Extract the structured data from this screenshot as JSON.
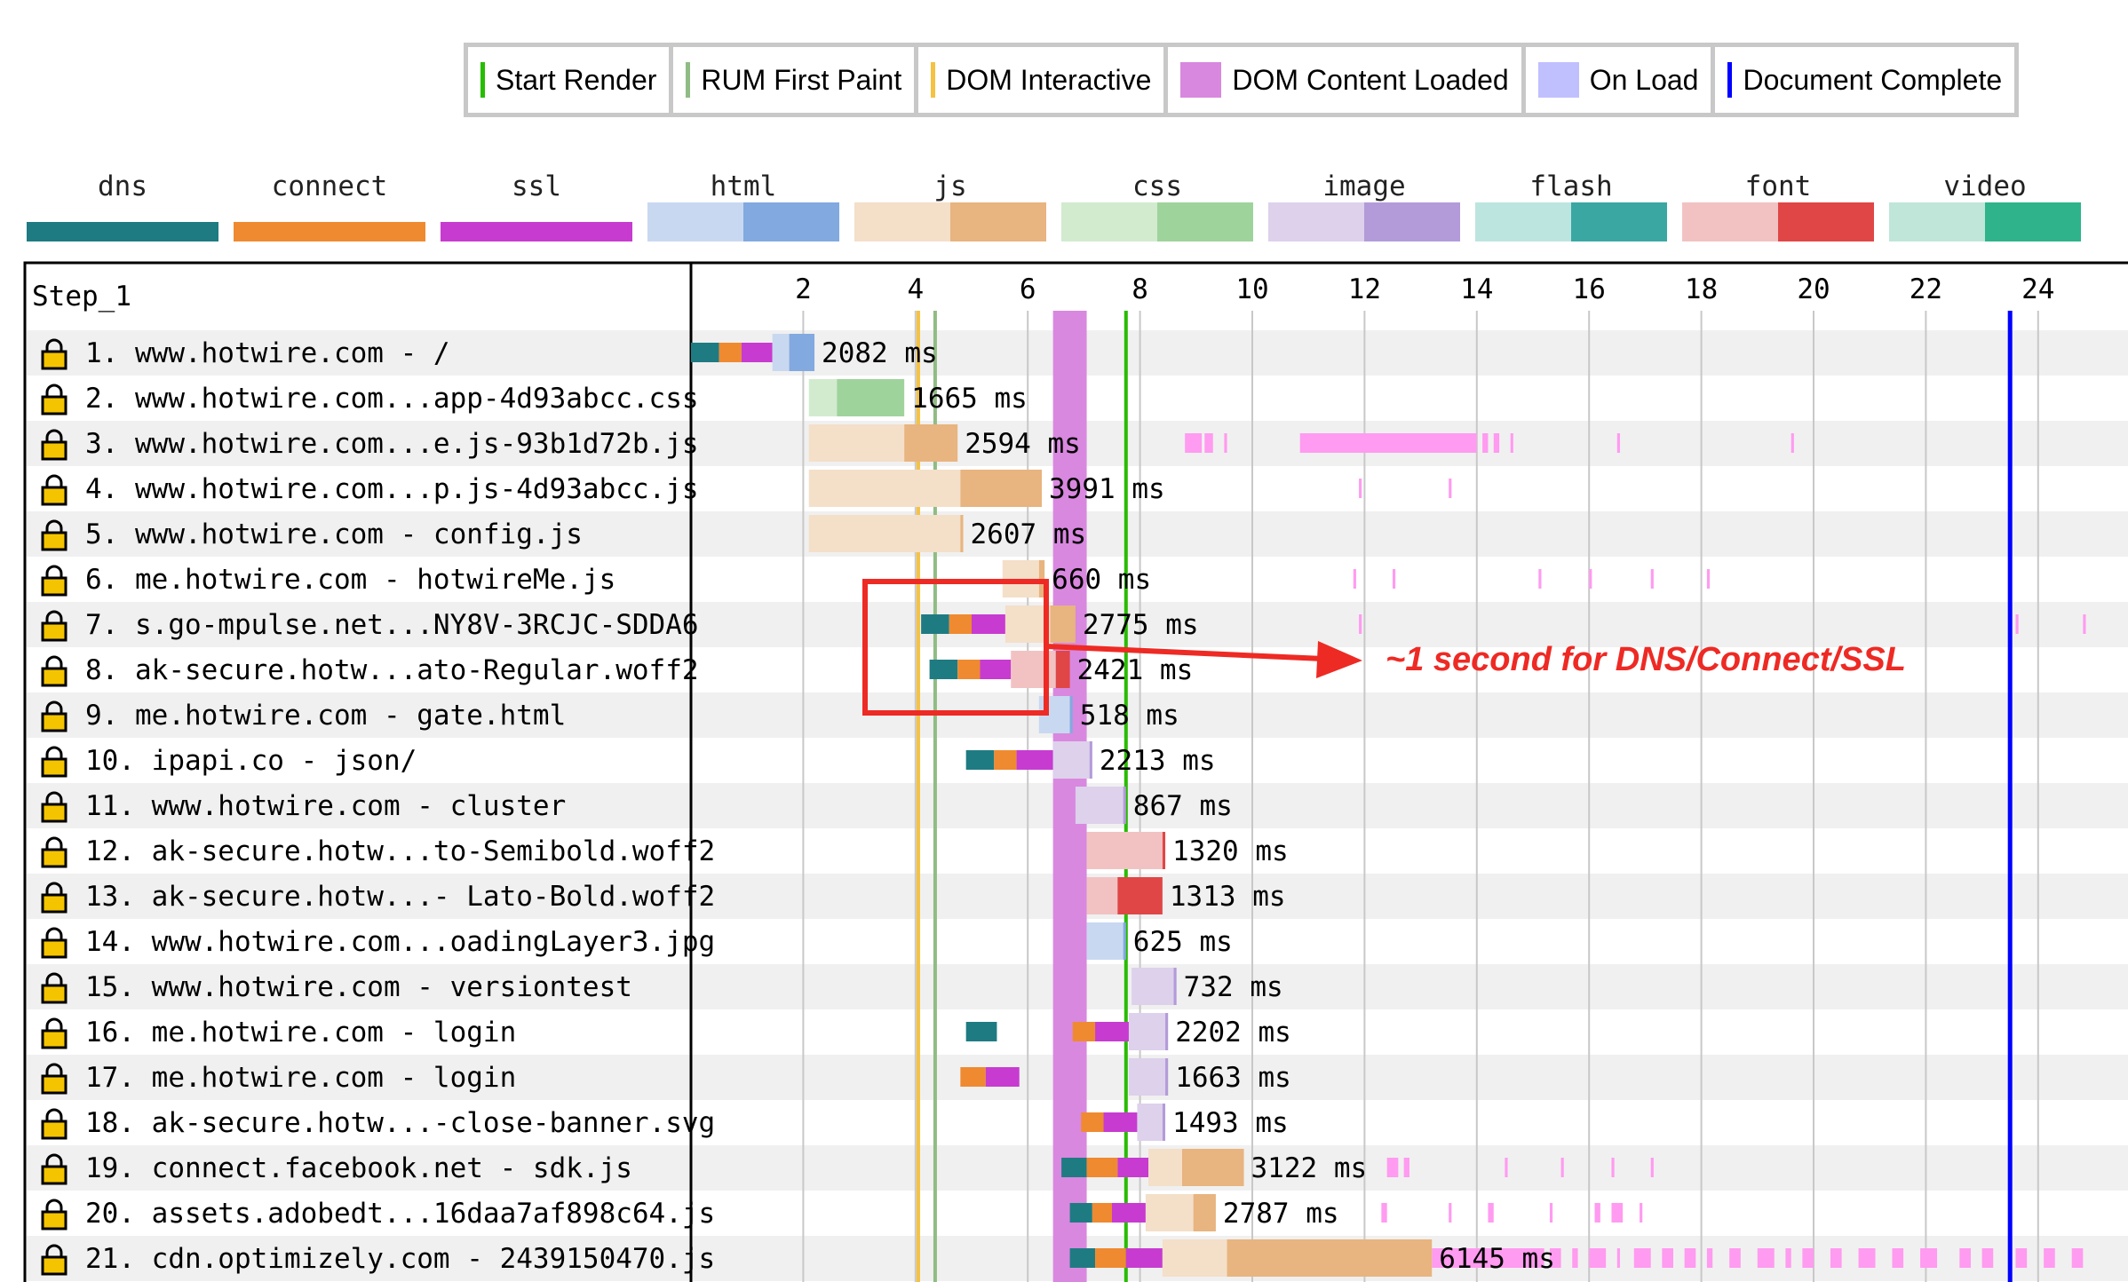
{
  "legend": [
    {
      "label": "Start Render",
      "color": "#28bc00",
      "kind": "line"
    },
    {
      "label": "RUM First Paint",
      "color": "#8fbc83",
      "kind": "line"
    },
    {
      "label": "DOM Interactive",
      "color": "#f5c242",
      "kind": "line"
    },
    {
      "label": "DOM Content Loaded",
      "color": "#d888df",
      "kind": "box"
    },
    {
      "label": "On Load",
      "color": "#c0c0ff",
      "kind": "box"
    },
    {
      "label": "Document Complete",
      "color": "#0000ff",
      "kind": "line"
    }
  ],
  "request_types": [
    {
      "label": "dns",
      "c1": "#1f7b82",
      "c2": "#1f7b82"
    },
    {
      "label": "connect",
      "c1": "#ef8a30",
      "c2": "#ef8a30"
    },
    {
      "label": "ssl",
      "c1": "#c73bd0",
      "c2": "#c73bd0"
    },
    {
      "label": "html",
      "c1": "#c9d8f1",
      "c2": "#82a9e0"
    },
    {
      "label": "js",
      "c1": "#f4dfc9",
      "c2": "#e8b47f"
    },
    {
      "label": "css",
      "c1": "#d2ebcf",
      "c2": "#9fd39c"
    },
    {
      "label": "image",
      "c1": "#ddd1ec",
      "c2": "#b39bd9"
    },
    {
      "label": "flash",
      "c1": "#bce5e0",
      "c2": "#3aa7a3"
    },
    {
      "label": "font",
      "c1": "#f2c2c2",
      "c2": "#e04646"
    },
    {
      "label": "video",
      "c1": "#bfe6d8",
      "c2": "#2eb38a"
    }
  ],
  "chart_data": {
    "type": "waterfall",
    "step_label": "Step_1",
    "x_ticks": [
      "2",
      "4",
      "6",
      "8",
      "10",
      "12",
      "14",
      "16",
      "18",
      "20",
      "22",
      "24"
    ],
    "x_unit": "seconds",
    "markers": {
      "dom_interactive": 4.05,
      "rum_first_paint": 4.35,
      "dom_content_loaded": [
        6.45,
        7.05
      ],
      "start_render": 7.75,
      "document_complete": 23.5
    },
    "requests": [
      {
        "label": "1. www.hotwire.com - /",
        "type": "html",
        "duration": "2082 ms",
        "dns": [
          0.0,
          0.5
        ],
        "connect": [
          0.5,
          0.9
        ],
        "ssl": [
          0.9,
          1.45
        ],
        "wait": [
          1.45,
          1.75
        ],
        "download": [
          1.75,
          2.2
        ]
      },
      {
        "label": "2. www.hotwire.com...app-4d93abcc.css",
        "type": "css",
        "duration": "1665 ms",
        "wait": [
          2.1,
          2.6
        ],
        "download": [
          2.6,
          3.8
        ]
      },
      {
        "label": "3. www.hotwire.com...e.js-93b1d72b.js",
        "type": "js",
        "duration": "2594 ms",
        "wait": [
          2.1,
          3.8
        ],
        "download": [
          3.8,
          4.75
        ]
      },
      {
        "label": "4. www.hotwire.com...p.js-4d93abcc.js",
        "type": "js",
        "duration": "3991 ms",
        "wait": [
          2.1,
          4.8
        ],
        "download": [
          4.8,
          6.25
        ]
      },
      {
        "label": "5. www.hotwire.com - config.js",
        "type": "js",
        "duration": "2607 ms",
        "wait": [
          2.1,
          4.8
        ],
        "download": [
          4.8,
          4.85
        ]
      },
      {
        "label": "6. me.hotwire.com - hotwireMe.js",
        "type": "js",
        "duration": "660 ms",
        "wait": [
          5.55,
          6.2
        ],
        "download": [
          6.2,
          6.3
        ]
      },
      {
        "label": "7. s.go-mpulse.net...NY8V-3RCJC-SDDA6",
        "type": "js",
        "duration": "2775 ms",
        "dns": [
          4.1,
          4.6
        ],
        "connect": [
          4.6,
          5.0
        ],
        "ssl": [
          5.0,
          5.6
        ],
        "wait": [
          5.6,
          6.4
        ],
        "download": [
          6.4,
          6.85
        ]
      },
      {
        "label": "8. ak-secure.hotw...ato-Regular.woff2",
        "type": "font",
        "duration": "2421 ms",
        "dns": [
          4.25,
          4.75
        ],
        "connect": [
          4.75,
          5.15
        ],
        "ssl": [
          5.15,
          5.7
        ],
        "wait": [
          5.7,
          6.5
        ],
        "download": [
          6.5,
          6.75
        ]
      },
      {
        "label": "9. me.hotwire.com - gate.html",
        "type": "html",
        "duration": "518 ms",
        "wait": [
          6.2,
          6.75
        ],
        "download": [
          6.75,
          6.8
        ]
      },
      {
        "label": "10. ipapi.co - json/",
        "type": "image",
        "duration": "2213 ms",
        "dns": [
          4.9,
          5.4
        ],
        "connect": [
          5.4,
          5.8
        ],
        "ssl": [
          5.8,
          6.45
        ],
        "wait": [
          6.45,
          7.1
        ],
        "download": [
          7.1,
          7.15
        ]
      },
      {
        "label": "11. www.hotwire.com - cluster",
        "type": "image",
        "duration": "867 ms",
        "wait": [
          6.85,
          7.7
        ],
        "download": [
          7.7,
          7.75
        ]
      },
      {
        "label": "12. ak-secure.hotw...to-Semibold.woff2",
        "type": "font",
        "duration": "1320 ms",
        "wait": [
          7.05,
          8.4
        ],
        "download": [
          8.4,
          8.45
        ]
      },
      {
        "label": "13. ak-secure.hotw...- Lato-Bold.woff2",
        "type": "font",
        "duration": "1313 ms",
        "wait": [
          7.05,
          7.6
        ],
        "download": [
          7.6,
          8.4
        ]
      },
      {
        "label": "14. www.hotwire.com...oadingLayer3.jpg",
        "type": "html",
        "duration": "625 ms",
        "wait": [
          7.05,
          7.7
        ],
        "download": [
          7.7,
          7.75
        ]
      },
      {
        "label": "15. www.hotwire.com - versiontest",
        "type": "image",
        "duration": "732 ms",
        "wait": [
          7.85,
          8.6
        ],
        "download": [
          8.6,
          8.65
        ]
      },
      {
        "label": "16. me.hotwire.com - login",
        "type": "image",
        "duration": "2202 ms",
        "dns": [
          4.9,
          5.45
        ],
        "connect": [
          6.8,
          7.2
        ],
        "ssl": [
          7.2,
          7.8
        ],
        "wait": [
          7.8,
          8.45
        ],
        "download": [
          8.45,
          8.5
        ]
      },
      {
        "label": "17. me.hotwire.com - login",
        "type": "image",
        "duration": "1663 ms",
        "connect": [
          4.8,
          5.25
        ],
        "ssl": [
          5.25,
          5.85
        ],
        "wait": [
          7.8,
          8.45
        ],
        "download": [
          8.45,
          8.5
        ]
      },
      {
        "label": "18. ak-secure.hotw...-close-banner.svg",
        "type": "image",
        "duration": "1493 ms",
        "connect": [
          6.95,
          7.35
        ],
        "ssl": [
          7.35,
          7.95
        ],
        "wait": [
          7.95,
          8.4
        ],
        "download": [
          8.4,
          8.45
        ]
      },
      {
        "label": "19. connect.facebook.net - sdk.js",
        "type": "js",
        "duration": "3122 ms",
        "dns": [
          6.6,
          7.05
        ],
        "connect": [
          7.05,
          7.6
        ],
        "ssl": [
          7.6,
          8.15
        ],
        "wait": [
          8.15,
          8.75
        ],
        "download": [
          8.75,
          9.85
        ]
      },
      {
        "label": "20. assets.adobedt...16daa7af898c64.js",
        "type": "js",
        "duration": "2787 ms",
        "dns": [
          6.75,
          7.15
        ],
        "connect": [
          7.15,
          7.5
        ],
        "ssl": [
          7.5,
          8.1
        ],
        "wait": [
          8.1,
          8.95
        ],
        "download": [
          8.95,
          9.35
        ]
      },
      {
        "label": "21. cdn.optimizely.com - 2439150470.js",
        "type": "js",
        "duration": "6145 ms",
        "dns": [
          6.75,
          7.2
        ],
        "connect": [
          7.2,
          7.75
        ],
        "ssl": [
          7.75,
          8.4
        ],
        "wait": [
          8.4,
          9.55
        ],
        "download": [
          9.55,
          13.2
        ]
      }
    ],
    "annotation": {
      "text": "~1 second for DNS/Connect/SSL"
    }
  }
}
